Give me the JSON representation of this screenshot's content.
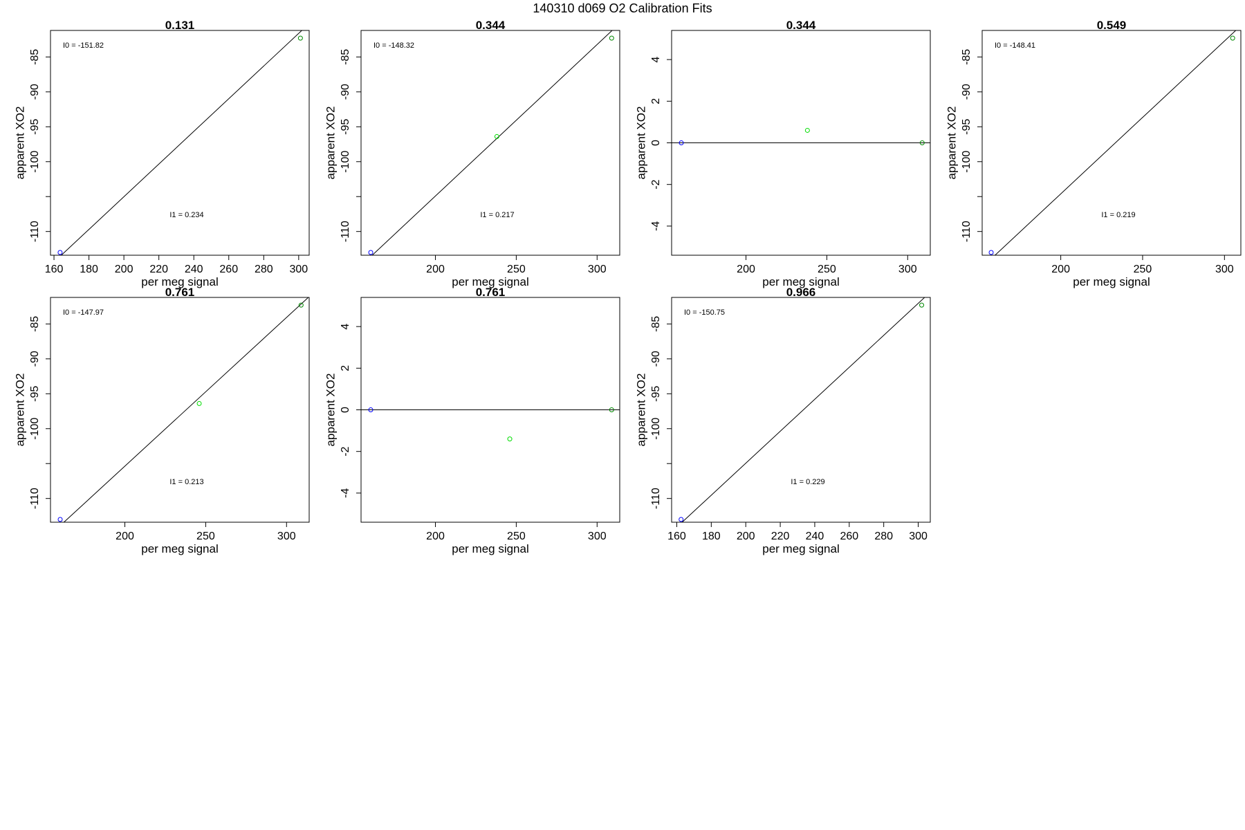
{
  "page_title": "140310   d069   O2 Calibration Fits",
  "colors": {
    "frame": "#000000",
    "fit_line": "#000000",
    "low_point": "#0000ff",
    "mid_point": "#00dd00",
    "high_point": "#008800"
  },
  "chart_data": [
    {
      "type": "scatter",
      "title": "0.131",
      "xlabel": "per meg signal",
      "ylabel": "apparent XO2",
      "xlim": [
        158,
        306
      ],
      "ylim": [
        -113.4,
        -81.2
      ],
      "xticks": [
        160,
        180,
        200,
        220,
        240,
        260,
        280,
        300
      ],
      "yticks": [
        -110,
        -105,
        -100,
        -95,
        -90,
        -85
      ],
      "ytick_labels": [
        "-110",
        "",
        "-100",
        "-95",
        "-90",
        "-85"
      ],
      "points": [
        {
          "x": 163.5,
          "y": -113.0,
          "color": "low_point"
        },
        {
          "x": 301.0,
          "y": -82.3,
          "color": "high_point"
        }
      ],
      "fit_line": {
        "intercept_label": "I0 =  -151.82",
        "slope_label": "I1 =  0.234",
        "intercept": -151.82,
        "slope": 0.234
      }
    },
    {
      "type": "scatter",
      "title": "0.344",
      "xlabel": "per meg signal",
      "ylabel": "apparent XO2",
      "xlim": [
        154,
        314
      ],
      "ylim": [
        -113.4,
        -81.2
      ],
      "xticks": [
        200,
        250,
        300
      ],
      "yticks": [
        -110,
        -105,
        -100,
        -95,
        -90,
        -85
      ],
      "ytick_labels": [
        "-110",
        "",
        "-100",
        "-95",
        "-90",
        "-85"
      ],
      "points": [
        {
          "x": 160.0,
          "y": -113.0,
          "color": "low_point"
        },
        {
          "x": 238.0,
          "y": -96.4,
          "color": "mid_point"
        },
        {
          "x": 309.0,
          "y": -82.3,
          "color": "high_point"
        }
      ],
      "fit_line": {
        "intercept_label": "I0 =  -148.32",
        "slope_label": "I1 =  0.217",
        "intercept": -148.32,
        "slope": 0.217
      }
    },
    {
      "type": "scatter",
      "title": "0.344",
      "xlabel": "per meg signal",
      "ylabel": "apparent XO2",
      "xlim": [
        154,
        314
      ],
      "ylim": [
        -5.4,
        5.4
      ],
      "xticks": [
        200,
        250,
        300
      ],
      "yticks": [
        -4,
        -2,
        0,
        2,
        4
      ],
      "ytick_labels": [
        "-4",
        "-2",
        "0",
        "2",
        "4"
      ],
      "points": [
        {
          "x": 160.0,
          "y": 0.0,
          "color": "low_point"
        },
        {
          "x": 238.0,
          "y": 0.6,
          "color": "mid_point"
        },
        {
          "x": 309.0,
          "y": 0.0,
          "color": "high_point"
        }
      ],
      "fit_line": {
        "intercept": 0,
        "slope": 0
      }
    },
    {
      "type": "scatter",
      "title": "0.549",
      "xlabel": "per meg signal",
      "ylabel": "apparent XO2",
      "xlim": [
        152,
        310
      ],
      "ylim": [
        -113.4,
        -81.2
      ],
      "xticks": [
        200,
        250,
        300
      ],
      "yticks": [
        -110,
        -105,
        -100,
        -95,
        -90,
        -85
      ],
      "ytick_labels": [
        "-110",
        "",
        "-100",
        "-95",
        "-90",
        "-85"
      ],
      "points": [
        {
          "x": 157.5,
          "y": -113.0,
          "color": "low_point"
        },
        {
          "x": 305.0,
          "y": -82.3,
          "color": "high_point"
        }
      ],
      "fit_line": {
        "intercept_label": "I0 =  -148.41",
        "slope_label": "I1 =  0.219",
        "intercept": -148.41,
        "slope": 0.219
      }
    },
    {
      "type": "scatter",
      "title": "0.761",
      "xlabel": "per meg signal",
      "ylabel": "apparent XO2",
      "xlim": [
        154,
        314
      ],
      "ylim": [
        -113.4,
        -81.2
      ],
      "xticks": [
        200,
        250,
        300
      ],
      "yticks": [
        -110,
        -105,
        -100,
        -95,
        -90,
        -85
      ],
      "ytick_labels": [
        "-110",
        "",
        "-100",
        "-95",
        "-90",
        "-85"
      ],
      "points": [
        {
          "x": 160.0,
          "y": -113.0,
          "color": "low_point"
        },
        {
          "x": 246.0,
          "y": -96.4,
          "color": "mid_point"
        },
        {
          "x": 309.0,
          "y": -82.3,
          "color": "high_point"
        }
      ],
      "fit_line": {
        "intercept_label": "I0 =  -147.97",
        "slope_label": "I1 =  0.213",
        "intercept": -147.97,
        "slope": 0.213
      }
    },
    {
      "type": "scatter",
      "title": "0.761",
      "xlabel": "per meg signal",
      "ylabel": "apparent XO2",
      "xlim": [
        154,
        314
      ],
      "ylim": [
        -5.4,
        5.4
      ],
      "xticks": [
        200,
        250,
        300
      ],
      "yticks": [
        -4,
        -2,
        0,
        2,
        4
      ],
      "ytick_labels": [
        "-4",
        "-2",
        "0",
        "2",
        "4"
      ],
      "points": [
        {
          "x": 160.0,
          "y": 0.0,
          "color": "low_point"
        },
        {
          "x": 246.0,
          "y": -1.4,
          "color": "mid_point"
        },
        {
          "x": 309.0,
          "y": 0.0,
          "color": "high_point"
        }
      ],
      "fit_line": {
        "intercept": 0,
        "slope": 0
      }
    },
    {
      "type": "scatter",
      "title": "0.966",
      "xlabel": "per meg signal",
      "ylabel": "apparent XO2",
      "xlim": [
        157,
        307
      ],
      "ylim": [
        -113.4,
        -81.2
      ],
      "xticks": [
        160,
        180,
        200,
        220,
        240,
        260,
        280,
        300
      ],
      "yticks": [
        -110,
        -105,
        -100,
        -95,
        -90,
        -85
      ],
      "ytick_labels": [
        "-110",
        "",
        "-100",
        "-95",
        "-90",
        "-85"
      ],
      "points": [
        {
          "x": 162.5,
          "y": -113.0,
          "color": "low_point"
        },
        {
          "x": 302.0,
          "y": -82.3,
          "color": "high_point"
        }
      ],
      "fit_line": {
        "intercept_label": "I0 =  -150.75",
        "slope_label": "I1 =  0.229",
        "intercept": -150.75,
        "slope": 0.229
      }
    }
  ]
}
